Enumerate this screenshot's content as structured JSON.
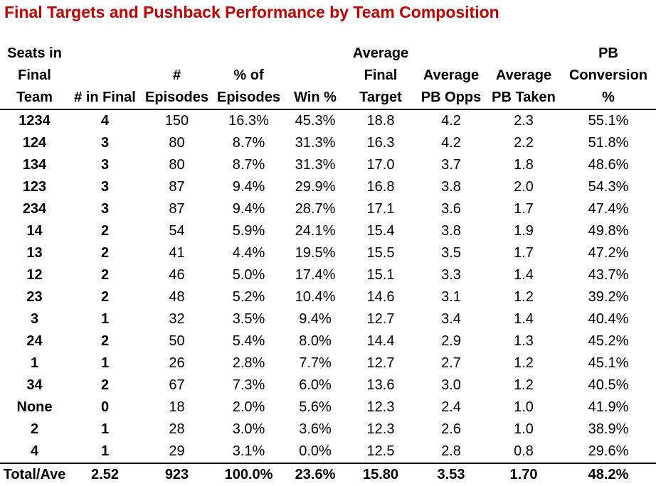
{
  "title": "Final Targets and Pushback Performance by Team Composition",
  "headers": [
    [
      "Seats in",
      "Final",
      "Team"
    ],
    [
      "",
      "",
      "# in Final"
    ],
    [
      "",
      "#",
      "Episodes"
    ],
    [
      "",
      "% of",
      "Episodes"
    ],
    [
      "",
      "",
      "Win %"
    ],
    [
      "Average",
      "Final",
      "Target"
    ],
    [
      "",
      "Average",
      "PB Opps"
    ],
    [
      "",
      "Average",
      "PB Taken"
    ],
    [
      "PB",
      "Conversion",
      "%"
    ]
  ],
  "rows": [
    [
      "1234",
      "4",
      "150",
      "16.3%",
      "45.3%",
      "18.8",
      "4.2",
      "2.3",
      "55.1%"
    ],
    [
      "124",
      "3",
      "80",
      "8.7%",
      "31.3%",
      "16.3",
      "4.2",
      "2.2",
      "51.8%"
    ],
    [
      "134",
      "3",
      "80",
      "8.7%",
      "31.3%",
      "17.0",
      "3.7",
      "1.8",
      "48.6%"
    ],
    [
      "123",
      "3",
      "87",
      "9.4%",
      "29.9%",
      "16.8",
      "3.8",
      "2.0",
      "54.3%"
    ],
    [
      "234",
      "3",
      "87",
      "9.4%",
      "28.7%",
      "17.1",
      "3.6",
      "1.7",
      "47.4%"
    ],
    [
      "14",
      "2",
      "54",
      "5.9%",
      "24.1%",
      "15.4",
      "3.8",
      "1.9",
      "49.8%"
    ],
    [
      "13",
      "2",
      "41",
      "4.4%",
      "19.5%",
      "15.5",
      "3.5",
      "1.7",
      "47.2%"
    ],
    [
      "12",
      "2",
      "46",
      "5.0%",
      "17.4%",
      "15.1",
      "3.3",
      "1.4",
      "43.7%"
    ],
    [
      "23",
      "2",
      "48",
      "5.2%",
      "10.4%",
      "14.6",
      "3.1",
      "1.2",
      "39.2%"
    ],
    [
      "3",
      "1",
      "32",
      "3.5%",
      "9.4%",
      "12.7",
      "3.4",
      "1.4",
      "40.4%"
    ],
    [
      "24",
      "2",
      "50",
      "5.4%",
      "8.0%",
      "14.4",
      "2.9",
      "1.3",
      "45.2%"
    ],
    [
      "1",
      "1",
      "26",
      "2.8%",
      "7.7%",
      "12.7",
      "2.7",
      "1.2",
      "45.1%"
    ],
    [
      "34",
      "2",
      "67",
      "7.3%",
      "6.0%",
      "13.6",
      "3.0",
      "1.2",
      "40.5%"
    ],
    [
      "None",
      "0",
      "18",
      "2.0%",
      "5.6%",
      "12.3",
      "2.4",
      "1.0",
      "41.9%"
    ],
    [
      "2",
      "1",
      "28",
      "3.0%",
      "3.6%",
      "12.3",
      "2.6",
      "1.0",
      "38.9%"
    ],
    [
      "4",
      "1",
      "29",
      "3.1%",
      "0.0%",
      "12.5",
      "2.8",
      "0.8",
      "29.6%"
    ]
  ],
  "total": [
    "Total/Ave",
    "2.52",
    "923",
    "100.0%",
    "23.6%",
    "15.80",
    "3.53",
    "1.70",
    "48.2%"
  ]
}
